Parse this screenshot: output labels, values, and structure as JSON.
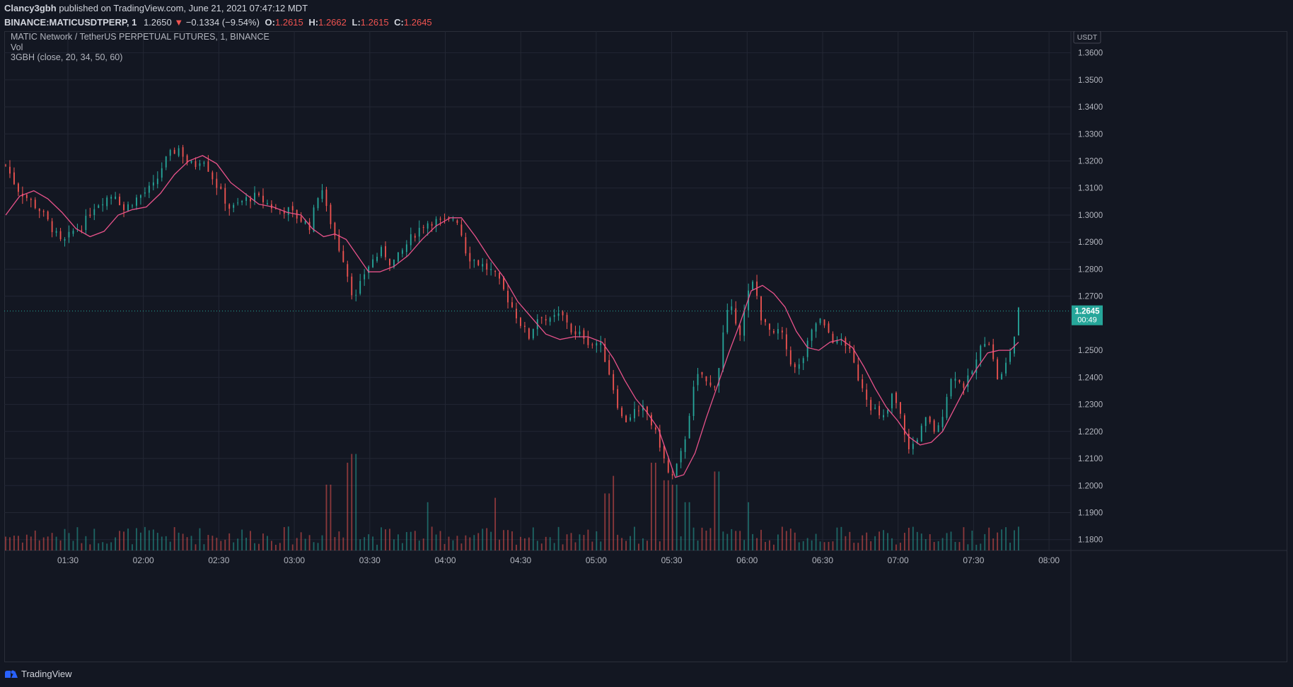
{
  "header": {
    "author": "Clancy3gbh",
    "published": "published on TradingView.com, June 21, 2021 07:47:12 MDT",
    "symbol": "BINANCE:MATICUSDTPERP, 1",
    "last": "1.2650",
    "change": "−0.1334 (−9.54%)",
    "o_label": "O:",
    "o_value": "1.2615",
    "h_label": "H:",
    "h_value": "1.2662",
    "l_label": "L:",
    "l_value": "1.2615",
    "c_label": "C:",
    "c_value": "1.2645"
  },
  "legend": {
    "title": "MATIC Network / TetherUS PERPETUAL FUTURES, 1, BINANCE",
    "vol": "Vol",
    "indicator": "3GBH (close, 20, 34, 50, 60)"
  },
  "footer": {
    "brand": "TradingView"
  },
  "colors": {
    "up": "#26a69a",
    "down": "#ef5350",
    "vol_up": "#26a69a",
    "vol_down": "#ef5350",
    "ma": "#e8528a",
    "grid": "#232734",
    "bg": "#131722",
    "last_price_bg": "#26a69a"
  },
  "chart_data": {
    "type": "candlestick",
    "currency": "USDT",
    "ylim": [
      1.176,
      1.368
    ],
    "y_ticks": [
      "1.3600",
      "1.3500",
      "1.3400",
      "1.3300",
      "1.3200",
      "1.3100",
      "1.3000",
      "1.2900",
      "1.2800",
      "1.2700",
      "1.2500",
      "1.2400",
      "1.2300",
      "1.2200",
      "1.2100",
      "1.2000",
      "1.1900",
      "1.1800"
    ],
    "x_ticks": [
      "01:30",
      "02:00",
      "02:30",
      "03:00",
      "03:30",
      "04:00",
      "04:30",
      "05:00",
      "05:30",
      "06:00",
      "06:30",
      "07:00",
      "07:30",
      "08:00"
    ],
    "last_price": "1.2645",
    "countdown": "00:49",
    "close_path": [
      [
        0,
        1.3185
      ],
      [
        8,
        1.31
      ],
      [
        16,
        1.306
      ],
      [
        24,
        1.302
      ],
      [
        32,
        1.296
      ],
      [
        40,
        1.289
      ],
      [
        48,
        1.294
      ],
      [
        56,
        1.297
      ],
      [
        62,
        1.303
      ],
      [
        70,
        1.306
      ],
      [
        78,
        1.308
      ],
      [
        84,
        1.302
      ],
      [
        90,
        1.305
      ],
      [
        98,
        1.308
      ],
      [
        106,
        1.311
      ],
      [
        112,
        1.319
      ],
      [
        118,
        1.323
      ],
      [
        124,
        1.325
      ],
      [
        128,
        1.32
      ],
      [
        134,
        1.318
      ],
      [
        140,
        1.322
      ],
      [
        146,
        1.315
      ],
      [
        152,
        1.309
      ],
      [
        160,
        1.302
      ],
      [
        168,
        1.305
      ],
      [
        176,
        1.307
      ],
      [
        184,
        1.305
      ],
      [
        192,
        1.302
      ],
      [
        200,
        1.302
      ],
      [
        208,
        1.299
      ],
      [
        216,
        1.296
      ],
      [
        220,
        1.303
      ],
      [
        224,
        1.312
      ],
      [
        228,
        1.302
      ],
      [
        232,
        1.296
      ],
      [
        236,
        1.289
      ],
      [
        240,
        1.284
      ],
      [
        244,
        1.276
      ],
      [
        248,
        1.268
      ],
      [
        252,
        1.274
      ],
      [
        256,
        1.28
      ],
      [
        262,
        1.284
      ],
      [
        268,
        1.287
      ],
      [
        274,
        1.282
      ],
      [
        280,
        1.285
      ],
      [
        286,
        1.29
      ],
      [
        292,
        1.294
      ],
      [
        298,
        1.297
      ],
      [
        304,
        1.298
      ],
      [
        310,
        1.297
      ],
      [
        316,
        1.298
      ],
      [
        320,
        1.3
      ],
      [
        324,
        1.293
      ],
      [
        328,
        1.285
      ],
      [
        334,
        1.283
      ],
      [
        340,
        1.281
      ],
      [
        346,
        1.279
      ],
      [
        352,
        1.274
      ],
      [
        358,
        1.268
      ],
      [
        364,
        1.262
      ],
      [
        368,
        1.258
      ],
      [
        372,
        1.255
      ],
      [
        376,
        1.26
      ],
      [
        380,
        1.264
      ],
      [
        386,
        1.26
      ],
      [
        392,
        1.263
      ],
      [
        398,
        1.262
      ],
      [
        404,
        1.255
      ],
      [
        410,
        1.256
      ],
      [
        416,
        1.252
      ],
      [
        422,
        1.253
      ],
      [
        426,
        1.247
      ],
      [
        430,
        1.24
      ],
      [
        434,
        1.232
      ],
      [
        438,
        1.225
      ],
      [
        442,
        1.224
      ],
      [
        446,
        1.228
      ],
      [
        450,
        1.226
      ],
      [
        454,
        1.229
      ],
      [
        458,
        1.224
      ],
      [
        462,
        1.219
      ],
      [
        466,
        1.214
      ],
      [
        470,
        1.205
      ],
      [
        474,
        1.203
      ],
      [
        478,
        1.208
      ],
      [
        482,
        1.215
      ],
      [
        486,
        1.227
      ],
      [
        490,
        1.238
      ],
      [
        494,
        1.242
      ],
      [
        498,
        1.238
      ],
      [
        502,
        1.236
      ],
      [
        506,
        1.24
      ],
      [
        510,
        1.256
      ],
      [
        514,
        1.266
      ],
      [
        518,
        1.263
      ],
      [
        522,
        1.257
      ],
      [
        526,
        1.266
      ],
      [
        530,
        1.276
      ],
      [
        534,
        1.27
      ],
      [
        538,
        1.26
      ],
      [
        542,
        1.258
      ],
      [
        546,
        1.255
      ],
      [
        550,
        1.258
      ],
      [
        554,
        1.252
      ],
      [
        558,
        1.246
      ],
      [
        562,
        1.242
      ],
      [
        566,
        1.246
      ],
      [
        570,
        1.252
      ],
      [
        574,
        1.258
      ],
      [
        578,
        1.262
      ],
      [
        582,
        1.258
      ],
      [
        586,
        1.256
      ],
      [
        590,
        1.252
      ],
      [
        594,
        1.254
      ],
      [
        598,
        1.252
      ],
      [
        602,
        1.246
      ],
      [
        606,
        1.24
      ],
      [
        610,
        1.236
      ],
      [
        614,
        1.23
      ],
      [
        618,
        1.228
      ],
      [
        622,
        1.224
      ],
      [
        626,
        1.226
      ],
      [
        630,
        1.233
      ],
      [
        634,
        1.229
      ],
      [
        638,
        1.222
      ],
      [
        642,
        1.213
      ],
      [
        646,
        1.216
      ],
      [
        650,
        1.22
      ],
      [
        654,
        1.224
      ],
      [
        658,
        1.222
      ],
      [
        662,
        1.219
      ],
      [
        666,
        1.227
      ],
      [
        670,
        1.236
      ],
      [
        674,
        1.242
      ],
      [
        678,
        1.238
      ],
      [
        682,
        1.237
      ],
      [
        686,
        1.241
      ],
      [
        690,
        1.246
      ],
      [
        694,
        1.252
      ],
      [
        698,
        1.256
      ],
      [
        702,
        1.246
      ],
      [
        706,
        1.238
      ],
      [
        710,
        1.243
      ],
      [
        714,
        1.25
      ],
      [
        718,
        1.257
      ],
      [
        720,
        1.2645
      ]
    ],
    "ma_path": [
      [
        0,
        1.3
      ],
      [
        10,
        1.307
      ],
      [
        20,
        1.309
      ],
      [
        30,
        1.306
      ],
      [
        40,
        1.301
      ],
      [
        50,
        1.295
      ],
      [
        60,
        1.292
      ],
      [
        70,
        1.294
      ],
      [
        80,
        1.3
      ],
      [
        90,
        1.302
      ],
      [
        100,
        1.303
      ],
      [
        110,
        1.308
      ],
      [
        120,
        1.315
      ],
      [
        130,
        1.32
      ],
      [
        140,
        1.322
      ],
      [
        150,
        1.319
      ],
      [
        160,
        1.312
      ],
      [
        170,
        1.308
      ],
      [
        180,
        1.304
      ],
      [
        190,
        1.303
      ],
      [
        200,
        1.301
      ],
      [
        210,
        1.3
      ],
      [
        218,
        1.295
      ],
      [
        226,
        1.292
      ],
      [
        234,
        1.293
      ],
      [
        242,
        1.291
      ],
      [
        250,
        1.285
      ],
      [
        258,
        1.279
      ],
      [
        266,
        1.279
      ],
      [
        276,
        1.281
      ],
      [
        286,
        1.285
      ],
      [
        296,
        1.291
      ],
      [
        306,
        1.296
      ],
      [
        316,
        1.299
      ],
      [
        324,
        1.299
      ],
      [
        334,
        1.292
      ],
      [
        344,
        1.284
      ],
      [
        354,
        1.277
      ],
      [
        364,
        1.268
      ],
      [
        374,
        1.262
      ],
      [
        384,
        1.256
      ],
      [
        394,
        1.254
      ],
      [
        404,
        1.255
      ],
      [
        414,
        1.255
      ],
      [
        424,
        1.253
      ],
      [
        432,
        1.247
      ],
      [
        440,
        1.239
      ],
      [
        448,
        1.232
      ],
      [
        456,
        1.227
      ],
      [
        464,
        1.221
      ],
      [
        470,
        1.212
      ],
      [
        476,
        1.203
      ],
      [
        482,
        1.204
      ],
      [
        490,
        1.212
      ],
      [
        498,
        1.225
      ],
      [
        506,
        1.237
      ],
      [
        514,
        1.249
      ],
      [
        522,
        1.26
      ],
      [
        530,
        1.272
      ],
      [
        538,
        1.274
      ],
      [
        546,
        1.271
      ],
      [
        554,
        1.266
      ],
      [
        562,
        1.257
      ],
      [
        570,
        1.251
      ],
      [
        578,
        1.25
      ],
      [
        586,
        1.253
      ],
      [
        594,
        1.254
      ],
      [
        602,
        1.251
      ],
      [
        610,
        1.244
      ],
      [
        618,
        1.236
      ],
      [
        626,
        1.229
      ],
      [
        634,
        1.224
      ],
      [
        642,
        1.218
      ],
      [
        650,
        1.215
      ],
      [
        658,
        1.216
      ],
      [
        666,
        1.22
      ],
      [
        674,
        1.228
      ],
      [
        682,
        1.236
      ],
      [
        690,
        1.243
      ],
      [
        698,
        1.249
      ],
      [
        706,
        1.25
      ],
      [
        714,
        1.25
      ],
      [
        720,
        1.253
      ]
    ],
    "volume_spikes": [
      [
        230,
        30
      ],
      [
        244,
        40
      ],
      [
        248,
        44
      ],
      [
        300,
        22
      ],
      [
        348,
        24
      ],
      [
        428,
        26
      ],
      [
        432,
        34
      ],
      [
        460,
        40
      ],
      [
        470,
        32
      ],
      [
        476,
        30
      ],
      [
        484,
        22
      ],
      [
        506,
        36
      ],
      [
        528,
        22
      ]
    ]
  }
}
